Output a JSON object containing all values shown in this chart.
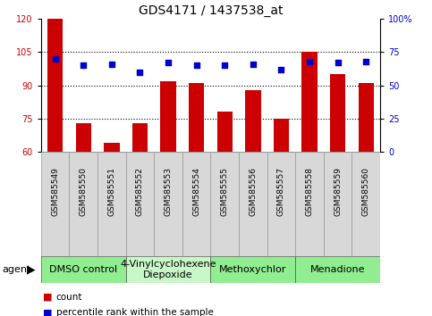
{
  "title": "GDS4171 / 1437538_at",
  "samples": [
    "GSM585549",
    "GSM585550",
    "GSM585551",
    "GSM585552",
    "GSM585553",
    "GSM585554",
    "GSM585555",
    "GSM585556",
    "GSM585557",
    "GSM585558",
    "GSM585559",
    "GSM585560"
  ],
  "counts": [
    120,
    73,
    64,
    73,
    92,
    91,
    78,
    88,
    75,
    105,
    95,
    91
  ],
  "percentile_ranks": [
    70,
    65,
    66,
    60,
    67,
    65,
    65,
    66,
    62,
    68,
    67,
    68
  ],
  "ylim_left": [
    60,
    120
  ],
  "ylim_right": [
    0,
    100
  ],
  "yticks_left": [
    60,
    75,
    90,
    105,
    120
  ],
  "yticks_right": [
    0,
    25,
    50,
    75,
    100
  ],
  "yticklabels_right": [
    "0",
    "25",
    "50",
    "75",
    "100%"
  ],
  "bar_color": "#cc0000",
  "dot_color": "#0000cc",
  "grid_color": "#000000",
  "bar_width": 0.55,
  "agents": [
    {
      "label": "DMSO control",
      "start": 0,
      "end": 3,
      "color": "#90ee90"
    },
    {
      "label": "4-Vinylcyclohexene\nDiepoxide",
      "start": 3,
      "end": 6,
      "color": "#c8f8c8"
    },
    {
      "label": "Methoxychlor",
      "start": 6,
      "end": 9,
      "color": "#90ee90"
    },
    {
      "label": "Menadione",
      "start": 9,
      "end": 12,
      "color": "#90ee90"
    }
  ],
  "agent_label": "agent",
  "legend_count_label": "count",
  "legend_pct_label": "percentile rank within the sample",
  "background_color": "#ffffff",
  "plot_bg_color": "#ffffff",
  "xtick_bg_color": "#d8d8d8",
  "title_fontsize": 10,
  "tick_fontsize": 7,
  "agent_fontsize": 8,
  "sample_fontsize": 6.5
}
